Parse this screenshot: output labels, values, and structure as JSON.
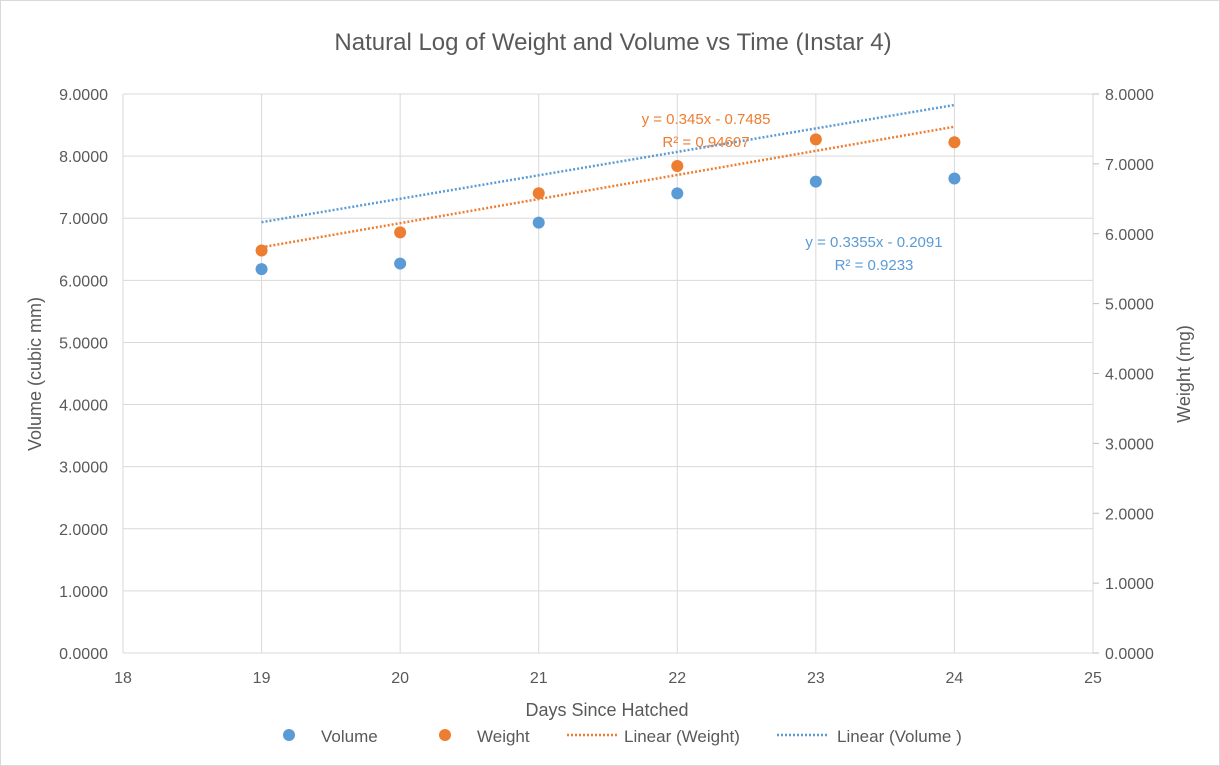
{
  "chart_data": {
    "type": "scatter",
    "title": "Natural Log of Weight and Volume vs Time (Instar 4)",
    "xlabel": "Days Since Hatched",
    "ylabel_left": "Volume (cubic mm)",
    "ylabel_right": "Weight (mg)",
    "xlim": [
      18,
      25
    ],
    "xticks": [
      "18",
      "19",
      "20",
      "21",
      "22",
      "23",
      "24",
      "25"
    ],
    "ylim_left": [
      0,
      9
    ],
    "yticks_left": [
      "0.0000",
      "1.0000",
      "2.0000",
      "3.0000",
      "4.0000",
      "5.0000",
      "6.0000",
      "7.0000",
      "8.0000",
      "9.0000"
    ],
    "ylim_right": [
      0,
      8
    ],
    "yticks_right": [
      "0.0000",
      "1.0000",
      "2.0000",
      "3.0000",
      "4.0000",
      "5.0000",
      "6.0000",
      "7.0000",
      "8.0000"
    ],
    "grid": true,
    "legend_position": "bottom",
    "series": [
      {
        "name": "Volume",
        "axis": "left",
        "color": "#5b9bd5",
        "x": [
          19,
          20,
          21,
          22,
          23,
          24
        ],
        "y": [
          6.18,
          6.27,
          6.93,
          7.4,
          7.59,
          7.64
        ]
      },
      {
        "name": "Weight",
        "axis": "right",
        "color": "#ed7d31",
        "x": [
          19,
          20,
          21,
          22,
          23,
          24
        ],
        "y": [
          5.76,
          6.02,
          6.58,
          6.97,
          7.35,
          7.31
        ]
      }
    ],
    "trendlines": [
      {
        "name": "Linear  (Weight)",
        "axis": "right",
        "color": "#ed7d31",
        "slope": 0.345,
        "intercept": -0.7485,
        "x_range": [
          19,
          24
        ],
        "equation": "y = 0.345x - 0.7485",
        "r2": "R² = 0.94607"
      },
      {
        "name": "Linear  (Volume )",
        "axis": "right",
        "color": "#5b9bd5",
        "slope": 0.3355,
        "intercept": -0.2091,
        "x_range": [
          19,
          24
        ],
        "equation": "y = 0.3355x - 0.2091",
        "r2": "R² = 0.9233"
      }
    ],
    "legend": [
      {
        "label": "Volume",
        "kind": "marker",
        "color": "#5b9bd5"
      },
      {
        "label": "Weight",
        "kind": "marker",
        "color": "#ed7d31"
      },
      {
        "label": "Linear  (Weight)",
        "kind": "dotted-line",
        "color": "#ed7d31"
      },
      {
        "label": "Linear  (Volume )",
        "kind": "dotted-line",
        "color": "#5b9bd5"
      }
    ]
  }
}
